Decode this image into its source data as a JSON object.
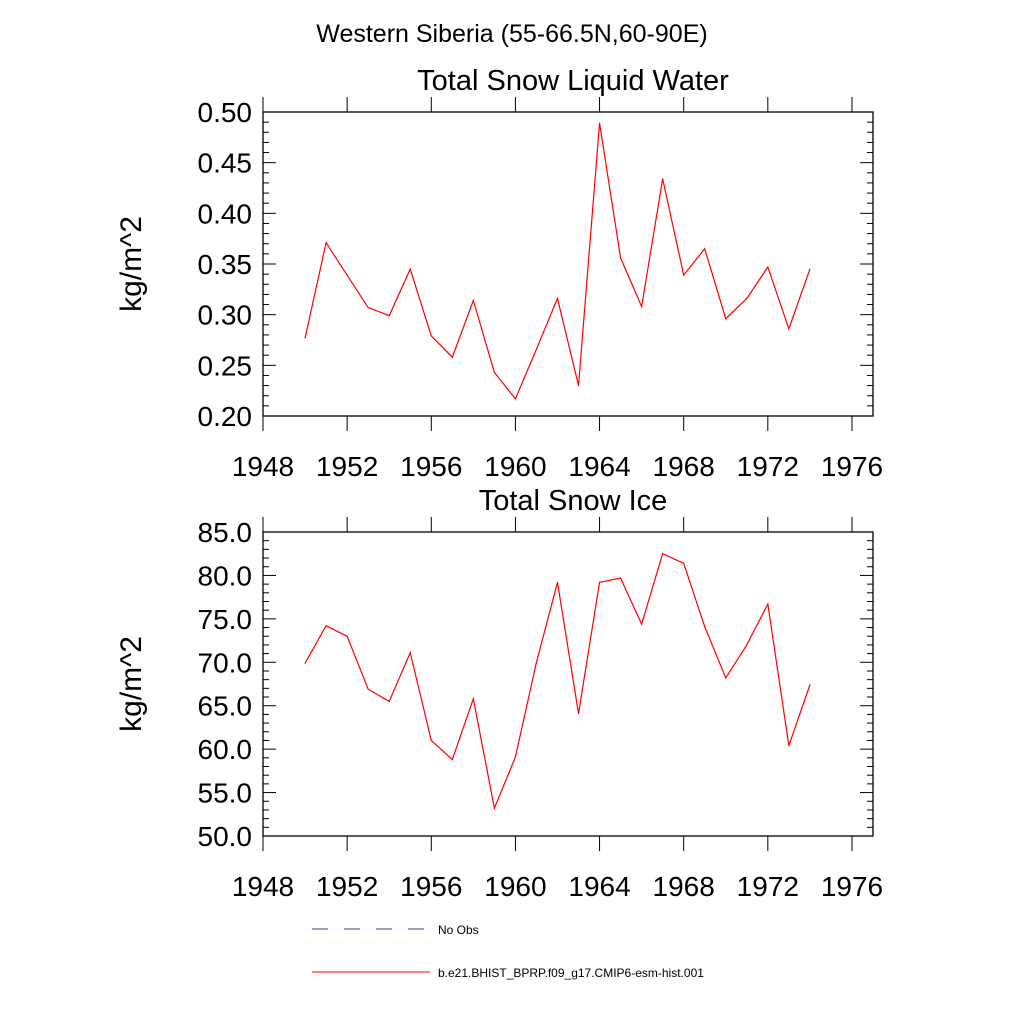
{
  "figure": {
    "suptitle": "Western Siberia (55-66.5N,60-90E)"
  },
  "legend": {
    "placement": "bottom-center",
    "entries": [
      {
        "label": "No Obs",
        "color": "#3b3f8f",
        "style": "dashed"
      },
      {
        "label": "b.e21.BHIST_BPRP.f09_g17.CMIP6-esm-hist.001",
        "color": "#ff0000",
        "style": "solid"
      }
    ]
  },
  "chart_data": [
    {
      "type": "line",
      "title": "Total Snow Liquid Water",
      "xlabel": "",
      "ylabel": "kg/m^2",
      "xlim": [
        1948,
        1977
      ],
      "ylim": [
        0.2,
        0.5
      ],
      "xticks": [
        1948,
        1952,
        1956,
        1960,
        1964,
        1968,
        1972,
        1976
      ],
      "xtick_labels": [
        "1948",
        "1952",
        "1956",
        "1960",
        "1964",
        "1968",
        "1972",
        "1976"
      ],
      "yticks": [
        0.2,
        0.25,
        0.3,
        0.35,
        0.4,
        0.45,
        0.5
      ],
      "ytick_labels": [
        "0.20",
        "0.25",
        "0.30",
        "0.35",
        "0.40",
        "0.45",
        "0.50"
      ],
      "grid": false,
      "x": [
        1950,
        1951,
        1952,
        1953,
        1954,
        1955,
        1956,
        1957,
        1958,
        1959,
        1960,
        1961,
        1962,
        1963,
        1964,
        1965,
        1966,
        1967,
        1968,
        1969,
        1970,
        1971,
        1972,
        1973,
        1974
      ],
      "series": [
        {
          "color": "#ff0000",
          "values": [
            0.277,
            0.371,
            0.339,
            0.307,
            0.299,
            0.345,
            0.279,
            0.258,
            0.314,
            0.243,
            0.217,
            0.266,
            0.316,
            0.23,
            0.489,
            0.356,
            0.308,
            0.434,
            0.339,
            0.365,
            0.296,
            0.316,
            0.347,
            0.286,
            0.345
          ]
        }
      ]
    },
    {
      "type": "line",
      "title": "Total Snow Ice",
      "xlabel": "",
      "ylabel": "kg/m^2",
      "xlim": [
        1948,
        1977
      ],
      "ylim": [
        50,
        85
      ],
      "xticks": [
        1948,
        1952,
        1956,
        1960,
        1964,
        1968,
        1972,
        1976
      ],
      "xtick_labels": [
        "1948",
        "1952",
        "1956",
        "1960",
        "1964",
        "1968",
        "1972",
        "1976"
      ],
      "yticks": [
        50,
        55,
        60,
        65,
        70,
        75,
        80,
        85
      ],
      "ytick_labels": [
        "50.0",
        "55.0",
        "60.0",
        "65.0",
        "70.0",
        "75.0",
        "80.0",
        "85.0"
      ],
      "grid": false,
      "x": [
        1950,
        1951,
        1952,
        1953,
        1954,
        1955,
        1956,
        1957,
        1958,
        1959,
        1960,
        1961,
        1962,
        1963,
        1964,
        1965,
        1966,
        1967,
        1968,
        1969,
        1970,
        1971,
        1972,
        1973,
        1974
      ],
      "series": [
        {
          "color": "#ff0000",
          "values": [
            69.9,
            74.2,
            73.0,
            66.9,
            65.5,
            71.1,
            61.0,
            58.8,
            65.8,
            53.2,
            59.1,
            70.0,
            79.2,
            64.1,
            79.2,
            79.7,
            74.4,
            82.5,
            81.4,
            74.1,
            68.2,
            72.0,
            76.7,
            60.4,
            67.4
          ]
        }
      ]
    }
  ]
}
